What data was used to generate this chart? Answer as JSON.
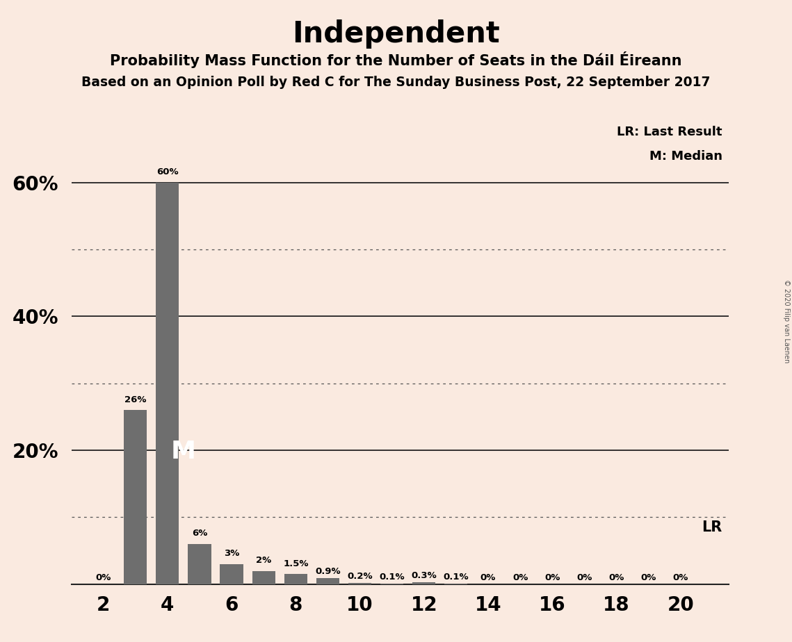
{
  "title": "Independent",
  "subtitle1": "Probability Mass Function for the Number of Seats in the Dáil Éireann",
  "subtitle2": "Based on an Opinion Poll by Red C for The Sunday Business Post, 22 September 2017",
  "copyright": "© 2020 Filip van Laenen",
  "background_color": "#faeae0",
  "bar_color": "#6e6e6e",
  "seats": [
    2,
    3,
    4,
    5,
    6,
    7,
    8,
    9,
    10,
    11,
    12,
    13,
    14,
    15,
    16,
    17,
    18,
    19,
    20
  ],
  "probabilities": [
    0.0,
    26.0,
    60.0,
    6.0,
    3.0,
    2.0,
    1.5,
    0.9,
    0.2,
    0.1,
    0.3,
    0.1,
    0.0,
    0.0,
    0.0,
    0.0,
    0.0,
    0.0,
    0.0
  ],
  "bar_labels": [
    "0%",
    "26%",
    "60%",
    "6%",
    "3%",
    "2%",
    "1.5%",
    "0.9%",
    "0.2%",
    "0.1%",
    "0.3%",
    "0.1%",
    "0%",
    "0%",
    "0%",
    "0%",
    "0%",
    "0%",
    "0%"
  ],
  "median_seat": 4,
  "lr_seat": 19,
  "major_yticks": [
    20,
    40,
    60
  ],
  "dotted_yticks": [
    10,
    30,
    50
  ],
  "lr_label": "LR",
  "lr_legend": "LR: Last Result",
  "median_legend": "M: Median",
  "xlabel_ticks": [
    2,
    4,
    6,
    8,
    10,
    12,
    14,
    16,
    18,
    20
  ],
  "ylim": [
    0,
    70
  ],
  "xlim": [
    1.0,
    21.5
  ]
}
